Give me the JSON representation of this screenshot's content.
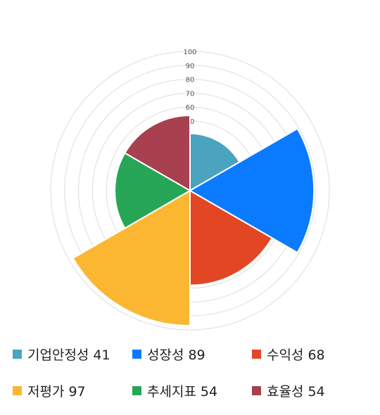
{
  "chart_data": {
    "type": "polar-area",
    "r_axis": {
      "min": 0,
      "max": 100,
      "step": 10,
      "tick_labels": [
        "50",
        "60",
        "70",
        "80",
        "90",
        "100"
      ]
    },
    "categories": [
      "기업안정성",
      "성장성",
      "수익성",
      "저평가",
      "추세지표",
      "효율성"
    ],
    "values": [
      41,
      89,
      68,
      97,
      54,
      54
    ],
    "colors": [
      "#4aa3bf",
      "#0a7bff",
      "#e24623",
      "#fbb731",
      "#27a657",
      "#a8404f"
    ],
    "grid": true,
    "legend": "bottom"
  }
}
